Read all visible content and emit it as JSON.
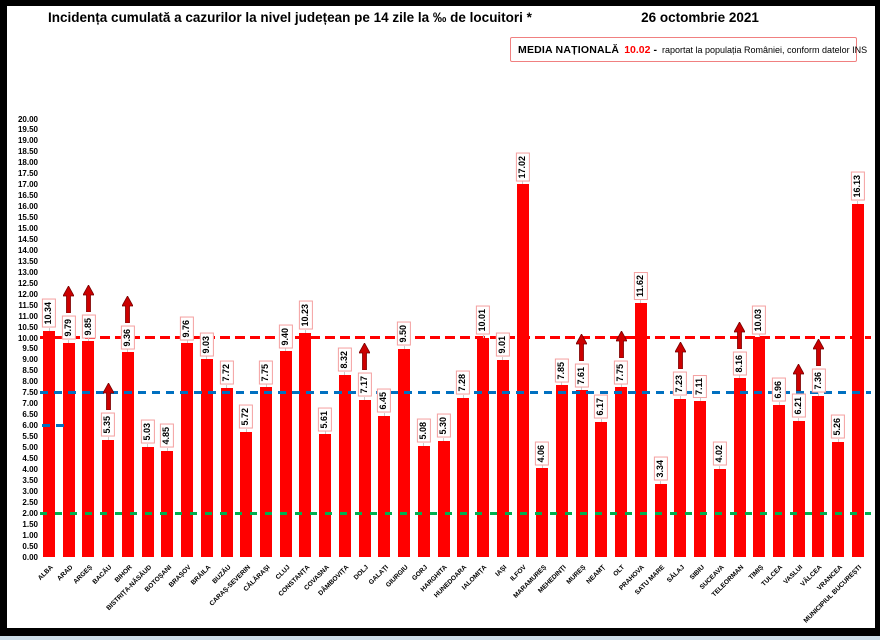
{
  "title": "Incidența cumulată a cazurilor la nivel județean pe 14 zile la ‰ de locuitori *",
  "date": "26 octombrie 2021",
  "legend": {
    "label": "MEDIA NAȚIONALĂ",
    "value": "10.02",
    "separator": "-",
    "note": "raportat la populația României, conform datelor INS"
  },
  "colors": {
    "bar": "#ff0000",
    "national_average_line": "#ff0000",
    "threshold_line_mid": "#0070c0",
    "threshold_line_low": "#00b050",
    "value_label_border": "#f4a0a0",
    "legend_border": "#f08080",
    "arrow_fill": "#cc0000"
  },
  "chart_data": {
    "type": "bar",
    "title": "Incidența cumulată a cazurilor la nivel județean pe 14 zile la ‰ de locuitori *",
    "xlabel": "",
    "ylabel": "",
    "ylim": [
      0,
      20
    ],
    "ytick_step": 0.5,
    "grid": false,
    "legend_position": "top-right",
    "national_average": 10.02,
    "categories": [
      "ALBA",
      "ARAD",
      "ARGEȘ",
      "BACĂU",
      "BIHOR",
      "BISTRIȚA-NĂSĂUD",
      "BOTOȘANI",
      "BRAȘOV",
      "BRĂILA",
      "BUZĂU",
      "CARAȘ-SEVERIN",
      "CĂLĂRAȘI",
      "CLUJ",
      "CONSTANȚA",
      "COVASNA",
      "DÂMBOVIȚA",
      "DOLJ",
      "GALAȚI",
      "GIURGIU",
      "GORJ",
      "HARGHITA",
      "HUNEDOARA",
      "IALOMIȚA",
      "IAȘI",
      "ILFOV",
      "MARAMUREȘ",
      "MEHEDINȚI",
      "MUREȘ",
      "NEAMȚ",
      "OLT",
      "PRAHOVA",
      "SATU MARE",
      "SĂLAJ",
      "SIBIU",
      "SUCEAVA",
      "TELEORMAN",
      "TIMIȘ",
      "TULCEA",
      "VASLUI",
      "VÂLCEA",
      "VRANCEA",
      "MUNICIPIUL BUCUREȘTI"
    ],
    "values": [
      10.34,
      9.79,
      9.85,
      5.35,
      9.36,
      5.03,
      4.85,
      9.76,
      9.03,
      7.72,
      5.72,
      7.75,
      9.4,
      10.23,
      5.61,
      8.32,
      7.17,
      6.45,
      9.5,
      5.08,
      5.3,
      7.28,
      10.01,
      9.01,
      17.02,
      4.06,
      7.85,
      7.61,
      6.17,
      7.75,
      11.62,
      3.34,
      7.23,
      7.11,
      4.02,
      8.16,
      10.03,
      6.96,
      6.21,
      7.36,
      5.26,
      16.13
    ],
    "increased": [
      "ARAD",
      "ARGEȘ",
      "BACĂU",
      "BIHOR",
      "DOLJ",
      "MUREȘ",
      "OLT",
      "SĂLAJ",
      "TELEORMAN",
      "VASLUI",
      "VÂLCEA"
    ],
    "reference_lines": [
      {
        "value": 10.02,
        "color": "#ff0000",
        "meaning": "media națională"
      },
      {
        "value": 7.5,
        "color": "#0070c0",
        "meaning": "prag"
      },
      {
        "value": 2.0,
        "color": "#00b050",
        "meaning": "prag"
      }
    ],
    "partial_line_stub": {
      "value": 6.0,
      "color": "#0070c0"
    }
  }
}
